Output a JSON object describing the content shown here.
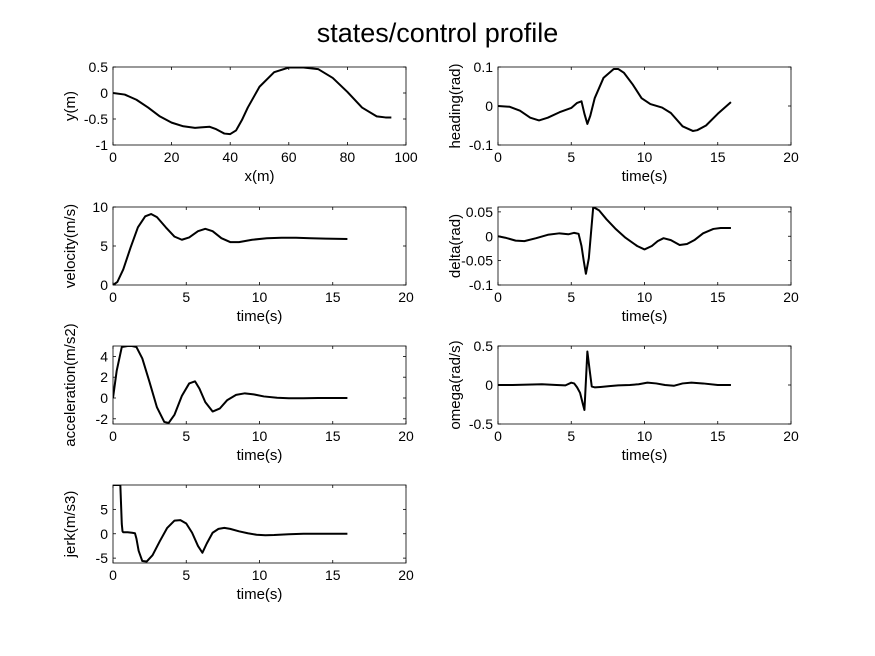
{
  "figure": {
    "title": "states/control profile"
  },
  "chart_data": [
    {
      "type": "line",
      "xlabel": "x(m)",
      "ylabel": "y(m)",
      "xlim": [
        0,
        100
      ],
      "ylim": [
        -1,
        0.5
      ],
      "xticks": [
        0,
        20,
        40,
        60,
        80,
        100
      ],
      "yticks": [
        -1,
        -0.5,
        0,
        0.5
      ],
      "series": [
        {
          "x": [
            0,
            4,
            8,
            12,
            16,
            20,
            24,
            28,
            30,
            33,
            35,
            37,
            38,
            40,
            42,
            44,
            46,
            50,
            55,
            60,
            65,
            70,
            75,
            80,
            85,
            90,
            93,
            95
          ],
          "values": [
            0,
            -0.03,
            -0.13,
            -0.28,
            -0.45,
            -0.57,
            -0.64,
            -0.67,
            -0.66,
            -0.65,
            -0.69,
            -0.75,
            -0.78,
            -0.79,
            -0.72,
            -0.52,
            -0.28,
            0.12,
            0.4,
            0.49,
            0.49,
            0.46,
            0.29,
            0.02,
            -0.28,
            -0.45,
            -0.47,
            -0.47
          ]
        }
      ]
    },
    {
      "type": "line",
      "xlabel": "time(s)",
      "ylabel": "heading(rad)",
      "xlim": [
        0,
        20
      ],
      "ylim": [
        -0.1,
        0.1
      ],
      "xticks": [
        0,
        5,
        10,
        15,
        20
      ],
      "yticks": [
        -0.1,
        0,
        0.1
      ],
      "series": [
        {
          "x": [
            0,
            0.8,
            1.5,
            2.2,
            2.8,
            3.4,
            4.2,
            5.0,
            5.4,
            5.7,
            5.9,
            6.1,
            6.3,
            6.6,
            7.2,
            7.9,
            8.2,
            8.6,
            9.2,
            9.8,
            10.4,
            11.2,
            11.8,
            12.6,
            13.3,
            13.6,
            14.2,
            15.0,
            15.9
          ],
          "values": [
            0,
            -0.002,
            -0.012,
            -0.03,
            -0.037,
            -0.03,
            -0.016,
            -0.005,
            0.008,
            0.012,
            -0.02,
            -0.046,
            -0.025,
            0.02,
            0.072,
            0.095,
            0.095,
            0.085,
            0.055,
            0.02,
            0.005,
            -0.004,
            -0.018,
            -0.052,
            -0.064,
            -0.062,
            -0.05,
            -0.02,
            0.01
          ]
        }
      ]
    },
    {
      "type": "line",
      "xlabel": "time(s)",
      "ylabel": "velocity(m/s)",
      "xlim": [
        0,
        20
      ],
      "ylim": [
        0,
        10
      ],
      "xticks": [
        0,
        5,
        10,
        15,
        20
      ],
      "yticks": [
        0,
        5,
        10
      ],
      "series": [
        {
          "x": [
            0,
            0.3,
            0.7,
            1.2,
            1.7,
            2.2,
            2.6,
            3.0,
            3.6,
            4.2,
            4.7,
            5.2,
            5.8,
            6.3,
            6.8,
            7.4,
            8.0,
            8.6,
            9.5,
            10.5,
            11.5,
            12.5,
            13.5,
            14.5,
            16.0
          ],
          "values": [
            0,
            0.4,
            2.0,
            4.8,
            7.4,
            8.8,
            9.1,
            8.7,
            7.4,
            6.2,
            5.8,
            6.1,
            6.9,
            7.2,
            6.9,
            6.0,
            5.5,
            5.5,
            5.8,
            6.0,
            6.05,
            6.05,
            6.0,
            5.95,
            5.9
          ]
        }
      ]
    },
    {
      "type": "line",
      "xlabel": "time(s)",
      "ylabel": "delta(rad)",
      "xlim": [
        0,
        20
      ],
      "ylim": [
        -0.1,
        0.06
      ],
      "xticks": [
        0,
        5,
        10,
        15,
        20
      ],
      "yticks": [
        -0.1,
        -0.05,
        0,
        0.05
      ],
      "series": [
        {
          "x": [
            0,
            0.5,
            1.2,
            1.8,
            2.6,
            3.4,
            4.2,
            4.8,
            5.2,
            5.5,
            5.7,
            5.85,
            6.0,
            6.2,
            6.5,
            6.9,
            7.4,
            8.0,
            8.7,
            9.5,
            10.0,
            10.5,
            10.9,
            11.3,
            11.8,
            12.4,
            12.9,
            13.4,
            14.0,
            14.7,
            15.2,
            15.9
          ],
          "values": [
            0,
            -0.003,
            -0.009,
            -0.01,
            -0.004,
            0.003,
            0.006,
            0.004,
            0.007,
            0.005,
            -0.02,
            -0.05,
            -0.077,
            -0.045,
            0.06,
            0.053,
            0.035,
            0.016,
            -0.003,
            -0.02,
            -0.027,
            -0.02,
            -0.01,
            -0.004,
            -0.008,
            -0.018,
            -0.016,
            -0.008,
            0.006,
            0.015,
            0.017,
            0.017
          ]
        }
      ]
    },
    {
      "type": "line",
      "xlabel": "time(s)",
      "ylabel": "acceleration(m/s2)",
      "xlim": [
        0,
        20
      ],
      "ylim": [
        -2.5,
        5
      ],
      "xticks": [
        0,
        5,
        10,
        15,
        20
      ],
      "yticks": [
        -2,
        0,
        2,
        4
      ],
      "series": [
        {
          "x": [
            0,
            0.25,
            0.6,
            1.0,
            1.3,
            1.6,
            2.0,
            2.5,
            3.0,
            3.5,
            3.8,
            4.2,
            4.7,
            5.2,
            5.6,
            5.9,
            6.3,
            6.8,
            7.3,
            7.8,
            8.4,
            9.0,
            9.6,
            10.3,
            11.2,
            12.0,
            13.0,
            14.0,
            15.0,
            16.0
          ],
          "values": [
            0,
            2.6,
            4.9,
            5.0,
            5.0,
            4.9,
            3.8,
            1.5,
            -0.9,
            -2.3,
            -2.4,
            -1.6,
            0.2,
            1.4,
            1.6,
            0.9,
            -0.4,
            -1.3,
            -1.0,
            -0.2,
            0.3,
            0.45,
            0.35,
            0.15,
            0.02,
            -0.02,
            -0.02,
            0.0,
            0.0,
            0.0
          ]
        }
      ]
    },
    {
      "type": "line",
      "xlabel": "time(s)",
      "ylabel": "omega(rad/s)",
      "xlim": [
        0,
        20
      ],
      "ylim": [
        -0.5,
        0.5
      ],
      "xticks": [
        0,
        5,
        10,
        15,
        20
      ],
      "yticks": [
        -0.5,
        0,
        0.5
      ],
      "series": [
        {
          "x": [
            0,
            1.0,
            2.0,
            3.0,
            4.0,
            4.6,
            5.0,
            5.2,
            5.4,
            5.6,
            5.8,
            5.9,
            6.0,
            6.1,
            6.25,
            6.4,
            6.6,
            7.0,
            7.6,
            8.2,
            9.0,
            9.6,
            10.2,
            10.8,
            11.4,
            12.0,
            12.6,
            13.2,
            14.0,
            15.0,
            15.9
          ],
          "values": [
            0,
            0.0,
            0.005,
            0.01,
            0.0,
            -0.005,
            0.03,
            0.02,
            -0.03,
            -0.1,
            -0.25,
            -0.32,
            0.05,
            0.43,
            0.2,
            -0.02,
            -0.03,
            -0.025,
            -0.015,
            -0.005,
            0.0,
            0.01,
            0.03,
            0.02,
            0.0,
            -0.01,
            0.02,
            0.03,
            0.02,
            0.0,
            0.0
          ]
        }
      ]
    },
    {
      "type": "line",
      "xlabel": "time(s)",
      "ylabel": "jerk(m/s3)",
      "xlim": [
        0,
        20
      ],
      "ylim": [
        -6,
        10
      ],
      "xticks": [
        0,
        5,
        10,
        15,
        20
      ],
      "yticks": [
        -5,
        0,
        5
      ],
      "series": [
        {
          "x": [
            0,
            0.2,
            0.35,
            0.5,
            0.6,
            0.65,
            0.7,
            1.0,
            1.3,
            1.5,
            1.6,
            1.75,
            2.0,
            2.3,
            2.7,
            3.2,
            3.7,
            4.2,
            4.6,
            5.0,
            5.4,
            5.8,
            6.1,
            6.4,
            6.8,
            7.2,
            7.6,
            8.0,
            8.6,
            9.2,
            9.8,
            10.4,
            11.0,
            12.0,
            13.0,
            14.0,
            15.0,
            16.0
          ],
          "values": [
            10,
            10,
            10,
            10,
            2,
            0.5,
            0.3,
            0.3,
            0.2,
            0.1,
            -1,
            -3.5,
            -5.6,
            -5.7,
            -4.4,
            -1.5,
            1.2,
            2.7,
            2.8,
            2.1,
            0.2,
            -2.5,
            -3.9,
            -2.0,
            0.2,
            1.0,
            1.2,
            1.0,
            0.5,
            0.1,
            -0.2,
            -0.3,
            -0.25,
            -0.1,
            0.0,
            0.0,
            0.0,
            0.0
          ]
        }
      ]
    }
  ]
}
